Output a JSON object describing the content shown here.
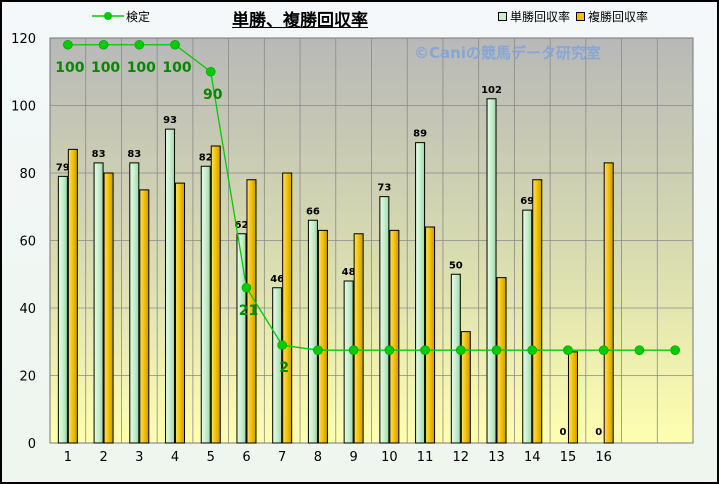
{
  "chart_data": {
    "type": "bar",
    "title": "単勝、複勝回収率",
    "watermark": "©Caniの競馬データ研究室",
    "categories": [
      "1",
      "2",
      "3",
      "4",
      "5",
      "6",
      "7",
      "8",
      "9",
      "10",
      "11",
      "12",
      "13",
      "14",
      "15",
      "16"
    ],
    "ylim": [
      0,
      120
    ],
    "yticks": [
      0,
      20,
      40,
      60,
      80,
      100,
      120
    ],
    "grid": true,
    "legend_placement": "top",
    "series": [
      {
        "name": "単勝回収率",
        "color": "#c6efce",
        "labels": true,
        "values": [
          79,
          83,
          83,
          93,
          82,
          62,
          46,
          66,
          48,
          73,
          89,
          50,
          102,
          69,
          0,
          0
        ]
      },
      {
        "name": "複勝回収率",
        "color": "#f2c200",
        "values": [
          87,
          80,
          75,
          77,
          88,
          78,
          80,
          63,
          62,
          63,
          64,
          33,
          49,
          78,
          27,
          83
        ]
      }
    ],
    "line": {
      "name": "検定",
      "color": "#00cc00",
      "x_positions": [
        0.5,
        1.5,
        2.5,
        3.5,
        4.5,
        5.5,
        6.5,
        7.5,
        8.5,
        9.5,
        10.5,
        11.5,
        12.5,
        13.5,
        14.5,
        15.5,
        16.5,
        17.5
      ],
      "values": [
        118,
        118,
        118,
        118,
        110,
        46,
        29,
        27.5,
        27.5,
        27.5,
        27.5,
        27.5,
        27.5,
        27.5,
        27.5,
        27.5,
        27.5,
        27.5
      ],
      "labels": [
        {
          "index": 0,
          "text": "100"
        },
        {
          "index": 1,
          "text": "100"
        },
        {
          "index": 2,
          "text": "100"
        },
        {
          "index": 3,
          "text": "100"
        },
        {
          "index": 4,
          "text": "90"
        },
        {
          "index": 5,
          "text": "21"
        },
        {
          "index": 6,
          "text": "2"
        }
      ]
    }
  }
}
